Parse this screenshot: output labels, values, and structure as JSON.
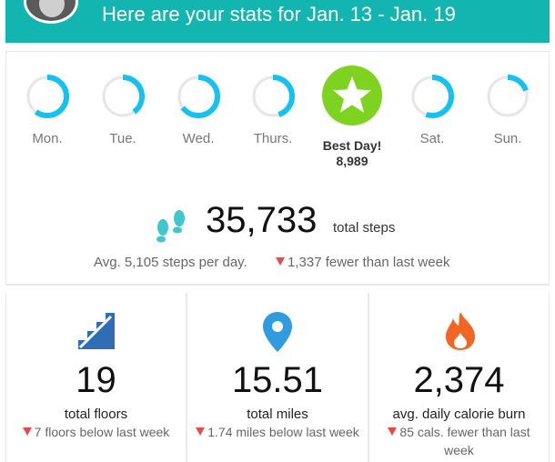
{
  "header": {
    "title": "Here are your stats for Jan. 13 - Jan. 19",
    "accent_color": "#13b5b0"
  },
  "days": [
    {
      "label": "Mon.",
      "progress": 0.6
    },
    {
      "label": "Tue.",
      "progress": 0.4
    },
    {
      "label": "Wed.",
      "progress": 0.65
    },
    {
      "label": "Thurs.",
      "progress": 0.45
    },
    {
      "label": "Sat.",
      "progress": 0.55
    },
    {
      "label": "Sun.",
      "progress": 0.2
    }
  ],
  "best_day": {
    "title": "Best Day!",
    "value": "8,989",
    "badge_color": "#7ed321",
    "icon": "star-icon"
  },
  "steps": {
    "total": "35,733",
    "unit": "total steps",
    "avg": "Avg. 5,105 steps per day.",
    "change": "1,337 fewer than last week",
    "icon": "footsteps-icon"
  },
  "stats": [
    {
      "value": "19",
      "label": "total floors",
      "change": "7 floors below last week",
      "icon": "stairs-icon"
    },
    {
      "value": "15.51",
      "label": "total miles",
      "change": "1.74 miles below last week",
      "icon": "map-pin-icon"
    },
    {
      "value": "2,374",
      "label": "avg. daily calorie burn",
      "change": "85 cals. fewer than last week",
      "icon": "flame-icon"
    }
  ],
  "colors": {
    "ring": "#14c1f0",
    "ring_track": "#e6e6e6",
    "down": "#e84a4a",
    "floors_icon": "#2f6db5",
    "miles_icon": "#2f9be0",
    "calories_icon": "#f26522"
  }
}
